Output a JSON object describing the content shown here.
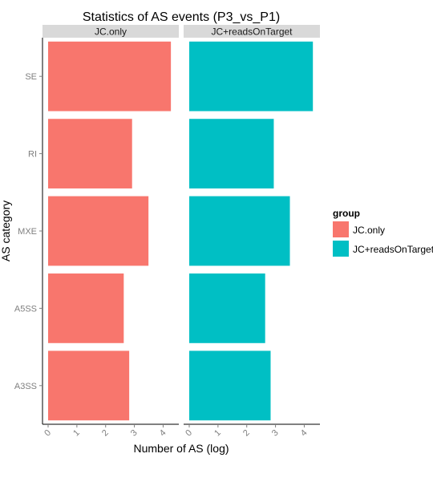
{
  "chart_data": {
    "type": "bar",
    "orientation": "horizontal",
    "title": "Statistics of AS events (P3_vs_P1)",
    "xlabel": "Number of AS (log)",
    "ylabel": "AS category",
    "categories": [
      "SE",
      "RI",
      "MXE",
      "A5SS",
      "A3SS"
    ],
    "xlim": [
      0,
      4.35
    ],
    "xticks": [
      "0",
      "1",
      "2",
      "3",
      "4"
    ],
    "facets": [
      "JC.only",
      "JC+readsOnTarget"
    ],
    "series": [
      {
        "name": "JC.only",
        "facet": "JC.only",
        "color": "#F8766D",
        "values": [
          4.27,
          2.92,
          3.49,
          2.63,
          2.82
        ]
      },
      {
        "name": "JC+readsOnTarget",
        "facet": "JC+readsOnTarget",
        "color": "#00BFC4",
        "values": [
          4.3,
          2.94,
          3.5,
          2.64,
          2.83
        ]
      }
    ],
    "legend": {
      "title": "group",
      "position": "right",
      "entries": [
        "JC.only",
        "JC+readsOnTarget"
      ]
    },
    "grid": false
  }
}
